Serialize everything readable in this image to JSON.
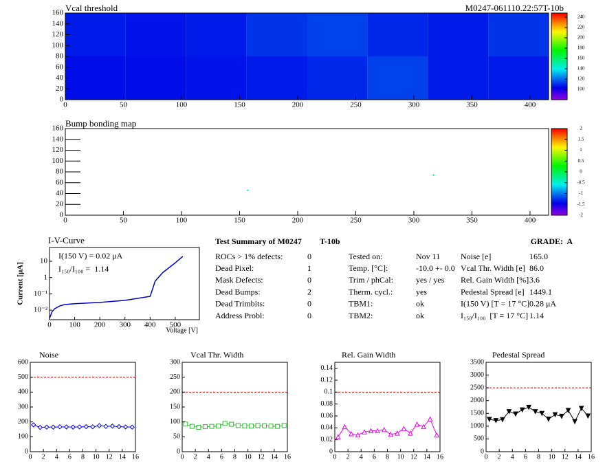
{
  "header": {
    "label": "M0247-061110.22:57T-10b"
  },
  "chart_data": [
    {
      "type": "heatmap",
      "title": "Vcal threshold",
      "xlim": [
        0,
        416
      ],
      "xticks": [
        0,
        50,
        100,
        150,
        200,
        250,
        300,
        350,
        400
      ],
      "ylim": [
        0,
        160
      ],
      "yticks": [
        0,
        20,
        40,
        60,
        80,
        100,
        120,
        140,
        160
      ],
      "xbins": [
        0,
        52,
        104,
        156,
        208,
        260,
        312,
        364,
        416
      ],
      "ybins": [
        0,
        80,
        160
      ],
      "z": [
        [
          106,
          106,
          107,
          108,
          110,
          114,
          108,
          108
        ],
        [
          108,
          107,
          108,
          112,
          114,
          110,
          108,
          112
        ]
      ],
      "zlim": [
        80,
        248
      ],
      "zticks": [
        100,
        120,
        140,
        160,
        180,
        200,
        220,
        240
      ]
    },
    {
      "type": "heatmap",
      "title": "Bump bonding map",
      "xlim": [
        0,
        416
      ],
      "xticks": [
        0,
        50,
        100,
        150,
        200,
        250,
        300,
        350,
        400
      ],
      "ylim": [
        0,
        160
      ],
      "yticks": [
        0,
        20,
        40,
        60,
        80,
        100,
        120,
        140,
        160
      ],
      "points": {
        "x": [
          157,
          317
        ],
        "y": [
          46,
          74
        ],
        "values": [
          0,
          0
        ]
      },
      "zlim": [
        -2,
        2
      ],
      "zticks": [
        -2,
        -1.5,
        -1,
        -0.5,
        0,
        0.5,
        1,
        1.5,
        2
      ]
    },
    {
      "type": "line",
      "title": "I-V-Curve",
      "log_y": true,
      "x_label": "Voltage [V]",
      "y_label": "Current [μA]",
      "x": [
        0,
        5,
        10,
        20,
        40,
        60,
        100,
        200,
        300,
        400,
        410,
        420,
        450,
        500,
        530
      ],
      "values": [
        0.003,
        0.005,
        0.008,
        0.012,
        0.018,
        0.022,
        0.025,
        0.03,
        0.04,
        0.07,
        0.2,
        0.6,
        2,
        8,
        20
      ],
      "color": "#0000cc",
      "xlim": [
        0,
        596
      ],
      "xticks": [
        0,
        100,
        200,
        300,
        400,
        500
      ],
      "ylim": [
        0.0026,
        70
      ],
      "yticks": [
        {
          "value": 0.01,
          "label": "10⁻²"
        },
        {
          "value": 0.1,
          "label": "10⁻¹"
        },
        1,
        10
      ],
      "annotations": [
        "I(150 V) = 0.02 μA",
        "I₁₅₀/I₁₀₀ =  1.14"
      ]
    },
    {
      "type": "line",
      "title": "Noise",
      "x": [
        0.5,
        1.5,
        2.5,
        3.5,
        4.5,
        5.5,
        6.5,
        7.5,
        8.5,
        9.5,
        10.5,
        11.5,
        12.5,
        13.5,
        14.5,
        15.5
      ],
      "values": [
        180,
        163,
        165,
        165,
        167,
        166,
        165,
        166,
        168,
        167,
        175,
        170,
        172,
        168,
        166,
        165
      ],
      "color": "#0000ff",
      "marker": "diamond",
      "limit": 500,
      "limit_color": "#cc0000",
      "xlim": [
        0,
        16
      ],
      "xticks": [
        0,
        2,
        4,
        6,
        8,
        10,
        12,
        14,
        16
      ],
      "ylim": [
        0,
        600
      ],
      "yticks": [
        0,
        100,
        200,
        300,
        400,
        500,
        600
      ]
    },
    {
      "type": "line",
      "title": "Vcal Thr. Width",
      "x": [
        0.5,
        1.5,
        2.5,
        3.5,
        4.5,
        5.5,
        6.5,
        7.5,
        8.5,
        9.5,
        10.5,
        11.5,
        12.5,
        13.5,
        14.5,
        15.5
      ],
      "values": [
        93,
        85,
        82,
        84,
        85,
        86,
        95,
        92,
        88,
        87,
        86,
        88,
        87,
        86,
        85,
        88
      ],
      "color": "#33bb33",
      "marker": "square",
      "limit": 200,
      "limit_color": "#cc0000",
      "xlim": [
        0,
        16
      ],
      "xticks": [
        0,
        2,
        4,
        6,
        8,
        10,
        12,
        14,
        16
      ],
      "ylim": [
        0,
        300
      ],
      "yticks": [
        0,
        50,
        100,
        150,
        200,
        250,
        300
      ]
    },
    {
      "type": "line",
      "title": "Rel. Gain Width",
      "x": [
        0.5,
        1.5,
        2.5,
        3.5,
        4.5,
        5.5,
        6.5,
        7.5,
        8.5,
        9.5,
        10.5,
        11.5,
        12.5,
        13.5,
        14.5,
        15.5
      ],
      "values": [
        0.025,
        0.042,
        0.03,
        0.028,
        0.033,
        0.035,
        0.035,
        0.037,
        0.029,
        0.031,
        0.039,
        0.031,
        0.046,
        0.042,
        0.055,
        0.028
      ],
      "color": "#ee00ee",
      "marker": "triangle",
      "limit": 0.1,
      "limit_color": "#cc0000",
      "xlim": [
        0,
        16
      ],
      "xticks": [
        0,
        2,
        4,
        6,
        8,
        10,
        12,
        14,
        16
      ],
      "ylim": [
        0,
        0.15
      ],
      "yticks": [
        0,
        0.02,
        0.04,
        0.06,
        0.08,
        0.1,
        0.12,
        0.14
      ]
    },
    {
      "type": "line",
      "title": "Pedestal Spread",
      "x": [
        0.5,
        1.5,
        2.5,
        3.5,
        4.5,
        5.5,
        6.5,
        7.5,
        8.5,
        9.5,
        10.5,
        11.5,
        12.5,
        13.5,
        14.5,
        15.5
      ],
      "values": [
        1270,
        1220,
        1260,
        1570,
        1480,
        1640,
        1740,
        1570,
        1500,
        1280,
        1450,
        1390,
        1620,
        1180,
        1700,
        1400
      ],
      "color": "#000000",
      "marker": "triangle-down",
      "marker_filled": true,
      "limit": 2500,
      "limit_color": "#cc0000",
      "xlim": [
        0,
        16
      ],
      "xticks": [
        0,
        2,
        4,
        6,
        8,
        10,
        12,
        14,
        16
      ],
      "ylim": [
        0,
        3500
      ],
      "yticks": [
        0,
        500,
        1000,
        1500,
        2000,
        2500,
        3000,
        3500
      ]
    }
  ],
  "summary": {
    "title": "Test Summary of M0247",
    "module_tag": "T-10b",
    "grade": "GRADE:  A",
    "defects": [
      [
        "ROCs > 1% defects:",
        "0"
      ],
      [
        "Dead Pixel:",
        "1"
      ],
      [
        "Mask Defects:",
        "0"
      ],
      [
        "Dead Bumps:",
        "2"
      ],
      [
        "Dead Trimbits:",
        "0"
      ],
      [
        "Address Probl:",
        "0"
      ]
    ],
    "results": [
      [
        "Tested on:",
        "Nov 11",
        "Noise [e]",
        "165.0"
      ],
      [
        "Temp. [°C]:",
        "-10.0 +- 0.0",
        "Vcal Thr. Width [e]",
        "86.0"
      ],
      [
        "Trim / phCal:",
        "yes / yes",
        "Rel. Gain Width [%]",
        "3.6"
      ],
      [
        "Therm. cycl.:",
        "yes",
        "Pedestal Spread [e]",
        "1449.1"
      ],
      [
        "TBM1:",
        "ok",
        "I(150 V) [T = 17 °C]",
        "0.28 μA"
      ],
      [
        "TBM2:",
        "ok",
        "I₁₅₀/I₁₀₀  [T = 17 °C]",
        "1.14"
      ]
    ]
  }
}
